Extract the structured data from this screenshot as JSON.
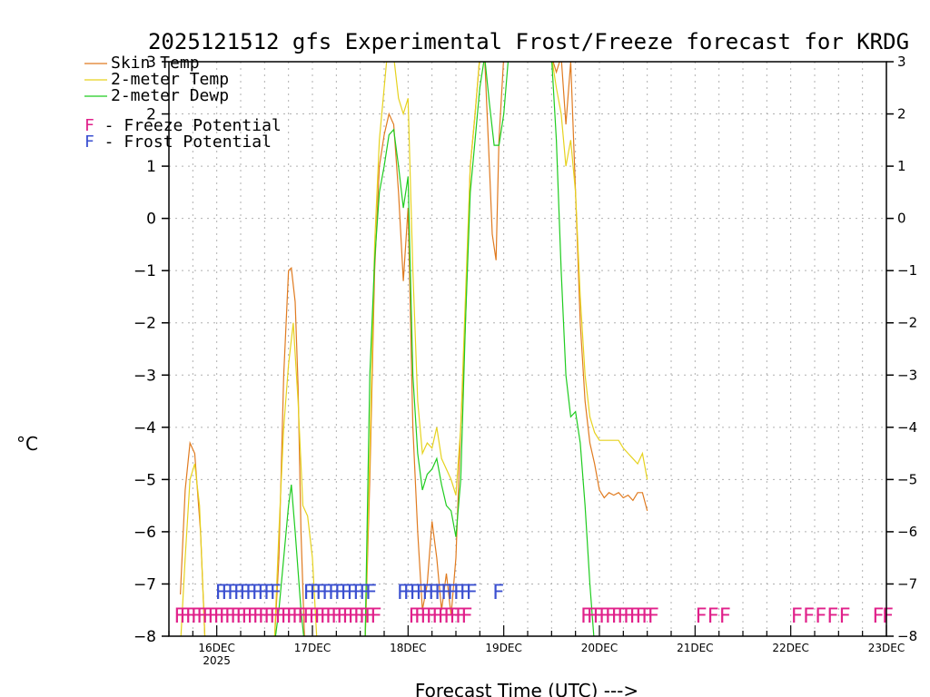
{
  "colors": {
    "skin": "#e07b20",
    "t2m": "#e6d21e",
    "dewp": "#1fcc1f",
    "freeze": "#e0208a",
    "frost": "#3a4fd0",
    "grid": "#b0b0b0"
  },
  "chart_data": {
    "type": "line",
    "title": "2025121512 gfs Experimental Frost/Freeze forecast for KRDG",
    "xlabel": "Forecast Time (UTC) --->",
    "ylabel": "°C",
    "ylim": [
      -8,
      3
    ],
    "xlim": [
      15.5,
      23.0
    ],
    "yticks": [
      3,
      2,
      1,
      0,
      -1,
      -2,
      -3,
      -4,
      -5,
      -6,
      -7,
      -8
    ],
    "xticks": [
      {
        "day": 16,
        "label": "16DEC",
        "sub": "2025"
      },
      {
        "day": 17,
        "label": "17DEC",
        "sub": ""
      },
      {
        "day": 18,
        "label": "18DEC",
        "sub": ""
      },
      {
        "day": 19,
        "label": "19DEC",
        "sub": ""
      },
      {
        "day": 20,
        "label": "20DEC",
        "sub": ""
      },
      {
        "day": 21,
        "label": "21DEC",
        "sub": ""
      },
      {
        "day": 22,
        "label": "22DEC",
        "sub": ""
      },
      {
        "day": 23,
        "label": "23DEC",
        "sub": ""
      }
    ],
    "legend": [
      {
        "key": "skin",
        "label": "Skin Temp"
      },
      {
        "key": "t2m",
        "label": "2-meter Temp"
      },
      {
        "key": "dewp",
        "label": "2-meter Dewp"
      }
    ],
    "flag_legend": [
      {
        "key": "freeze",
        "letter": "F",
        "label": " - Freeze Potential"
      },
      {
        "key": "frost",
        "letter": "F",
        "label": " - Frost Potential"
      }
    ],
    "series": [
      {
        "name": "Skin Temp",
        "key": "skin",
        "points": [
          [
            15.62,
            -7.2
          ],
          [
            15.67,
            -5.2
          ],
          [
            15.72,
            -4.3
          ],
          [
            15.77,
            -4.5
          ],
          [
            15.83,
            -6.0
          ],
          [
            15.88,
            -8.2
          ],
          [
            16.6,
            -8.2
          ],
          [
            16.65,
            -6.5
          ],
          [
            16.7,
            -3.0
          ],
          [
            16.75,
            -1.0
          ],
          [
            16.78,
            -0.95
          ],
          [
            16.82,
            -1.6
          ],
          [
            16.85,
            -3.2
          ],
          [
            16.88,
            -6.0
          ],
          [
            16.92,
            -8.2
          ],
          [
            17.55,
            -8.2
          ],
          [
            17.6,
            -5.0
          ],
          [
            17.65,
            -1.0
          ],
          [
            17.7,
            1.0
          ],
          [
            17.75,
            1.6
          ],
          [
            17.8,
            2.0
          ],
          [
            17.85,
            1.8
          ],
          [
            17.9,
            0.5
          ],
          [
            17.95,
            -1.2
          ],
          [
            18.0,
            0.2
          ],
          [
            18.05,
            -4.0
          ],
          [
            18.1,
            -6.0
          ],
          [
            18.15,
            -7.5
          ],
          [
            18.2,
            -7.0
          ],
          [
            18.25,
            -5.8
          ],
          [
            18.3,
            -6.5
          ],
          [
            18.35,
            -7.5
          ],
          [
            18.4,
            -6.8
          ],
          [
            18.45,
            -7.6
          ],
          [
            18.5,
            -6.5
          ],
          [
            18.55,
            -4.0
          ],
          [
            18.6,
            -2.0
          ],
          [
            18.65,
            1.0
          ],
          [
            18.7,
            2.0
          ],
          [
            18.75,
            3.1
          ],
          [
            18.8,
            3.1
          ],
          [
            18.85,
            1.0
          ],
          [
            18.88,
            -0.3
          ],
          [
            18.92,
            -0.8
          ],
          [
            18.95,
            1.5
          ],
          [
            19.0,
            3.1
          ],
          [
            19.5,
            3.1
          ],
          [
            19.55,
            2.8
          ],
          [
            19.6,
            3.1
          ],
          [
            19.65,
            1.8
          ],
          [
            19.7,
            3.0
          ],
          [
            19.75,
            0.5
          ],
          [
            19.8,
            -2.0
          ],
          [
            19.85,
            -3.5
          ],
          [
            19.9,
            -4.3
          ],
          [
            19.95,
            -4.7
          ],
          [
            20.0,
            -5.2
          ],
          [
            20.05,
            -5.35
          ],
          [
            20.1,
            -5.25
          ],
          [
            20.15,
            -5.3
          ],
          [
            20.2,
            -5.25
          ],
          [
            20.25,
            -5.35
          ],
          [
            20.3,
            -5.3
          ],
          [
            20.35,
            -5.4
          ],
          [
            20.4,
            -5.25
          ],
          [
            20.45,
            -5.25
          ],
          [
            20.5,
            -5.6
          ]
        ]
      },
      {
        "name": "2-meter Temp",
        "key": "t2m",
        "points": [
          [
            15.62,
            -8.2
          ],
          [
            15.67,
            -6.5
          ],
          [
            15.72,
            -5.0
          ],
          [
            15.77,
            -4.7
          ],
          [
            15.82,
            -5.5
          ],
          [
            15.88,
            -8.2
          ],
          [
            16.6,
            -8.2
          ],
          [
            16.65,
            -6.0
          ],
          [
            16.7,
            -4.0
          ],
          [
            16.75,
            -2.8
          ],
          [
            16.8,
            -2.0
          ],
          [
            16.85,
            -3.5
          ],
          [
            16.9,
            -5.5
          ],
          [
            16.95,
            -5.7
          ],
          [
            17.0,
            -6.5
          ],
          [
            17.05,
            -8.2
          ],
          [
            17.55,
            -8.2
          ],
          [
            17.6,
            -4.5
          ],
          [
            17.65,
            -0.5
          ],
          [
            17.7,
            1.5
          ],
          [
            17.75,
            2.5
          ],
          [
            17.78,
            3.1
          ],
          [
            17.85,
            3.1
          ],
          [
            17.9,
            2.3
          ],
          [
            17.95,
            2.0
          ],
          [
            18.0,
            2.3
          ],
          [
            18.05,
            -1.0
          ],
          [
            18.1,
            -3.5
          ],
          [
            18.15,
            -4.5
          ],
          [
            18.2,
            -4.3
          ],
          [
            18.25,
            -4.4
          ],
          [
            18.3,
            -4.0
          ],
          [
            18.35,
            -4.6
          ],
          [
            18.4,
            -4.8
          ],
          [
            18.45,
            -5.0
          ],
          [
            18.5,
            -5.3
          ],
          [
            18.55,
            -4.0
          ],
          [
            18.6,
            -1.5
          ],
          [
            18.65,
            1.0
          ],
          [
            18.7,
            2.0
          ],
          [
            18.75,
            3.1
          ],
          [
            19.5,
            3.1
          ],
          [
            19.55,
            2.5
          ],
          [
            19.6,
            2.0
          ],
          [
            19.65,
            1.0
          ],
          [
            19.7,
            1.5
          ],
          [
            19.75,
            0.5
          ],
          [
            19.8,
            -1.5
          ],
          [
            19.85,
            -3.0
          ],
          [
            19.9,
            -3.8
          ],
          [
            19.95,
            -4.1
          ],
          [
            20.0,
            -4.25
          ],
          [
            20.05,
            -4.25
          ],
          [
            20.1,
            -4.25
          ],
          [
            20.15,
            -4.25
          ],
          [
            20.2,
            -4.25
          ],
          [
            20.25,
            -4.4
          ],
          [
            20.3,
            -4.5
          ],
          [
            20.35,
            -4.6
          ],
          [
            20.4,
            -4.7
          ],
          [
            20.45,
            -4.5
          ],
          [
            20.5,
            -5.0
          ]
        ]
      },
      {
        "name": "2-meter Dewp",
        "key": "dewp",
        "points": [
          [
            16.6,
            -8.2
          ],
          [
            16.65,
            -7.5
          ],
          [
            16.7,
            -6.5
          ],
          [
            16.75,
            -5.5
          ],
          [
            16.78,
            -5.1
          ],
          [
            16.82,
            -6.0
          ],
          [
            16.88,
            -7.5
          ],
          [
            16.92,
            -8.2
          ],
          [
            17.55,
            -8.2
          ],
          [
            17.6,
            -3.0
          ],
          [
            17.65,
            -0.8
          ],
          [
            17.7,
            0.5
          ],
          [
            17.75,
            1.0
          ],
          [
            17.8,
            1.6
          ],
          [
            17.85,
            1.7
          ],
          [
            17.9,
            1.0
          ],
          [
            17.95,
            0.2
          ],
          [
            18.0,
            0.8
          ],
          [
            18.05,
            -3.0
          ],
          [
            18.1,
            -4.5
          ],
          [
            18.15,
            -5.2
          ],
          [
            18.2,
            -4.9
          ],
          [
            18.25,
            -4.8
          ],
          [
            18.3,
            -4.6
          ],
          [
            18.35,
            -5.1
          ],
          [
            18.4,
            -5.5
          ],
          [
            18.45,
            -5.6
          ],
          [
            18.5,
            -6.1
          ],
          [
            18.55,
            -5.0
          ],
          [
            18.6,
            -2.0
          ],
          [
            18.65,
            0.5
          ],
          [
            18.7,
            1.5
          ],
          [
            18.75,
            2.5
          ],
          [
            18.8,
            3.1
          ],
          [
            18.85,
            2.2
          ],
          [
            18.9,
            1.4
          ],
          [
            18.95,
            1.4
          ],
          [
            19.0,
            2.0
          ],
          [
            19.05,
            3.1
          ],
          [
            19.5,
            3.1
          ],
          [
            19.55,
            1.5
          ],
          [
            19.6,
            -1.0
          ],
          [
            19.65,
            -3.0
          ],
          [
            19.7,
            -3.8
          ],
          [
            19.75,
            -3.7
          ],
          [
            19.8,
            -4.3
          ],
          [
            19.85,
            -5.5
          ],
          [
            19.9,
            -7.0
          ],
          [
            19.95,
            -8.2
          ]
        ]
      }
    ],
    "flag_rows": [
      {
        "key": "frost",
        "value": -7.15,
        "marks": "F",
        "runs": [
          {
            "start": 15.98,
            "end": 16.55,
            "count": 10
          },
          {
            "start": 16.9,
            "end": 17.55,
            "count": 11
          },
          {
            "start": 17.88,
            "end": 18.6,
            "count": 12
          },
          {
            "start": 18.88,
            "end": 18.92,
            "count": 1
          }
        ]
      },
      {
        "key": "freeze",
        "value": -7.6,
        "marks": "F",
        "runs": [
          {
            "start": 15.55,
            "end": 17.6,
            "count": 36
          },
          {
            "start": 18.0,
            "end": 18.55,
            "count": 10
          },
          {
            "start": 19.8,
            "end": 20.5,
            "count": 12
          },
          {
            "start": 21.0,
            "end": 21.25,
            "count": 3
          },
          {
            "start": 22.0,
            "end": 22.5,
            "count": 5
          },
          {
            "start": 22.85,
            "end": 22.95,
            "count": 2
          }
        ]
      }
    ]
  }
}
